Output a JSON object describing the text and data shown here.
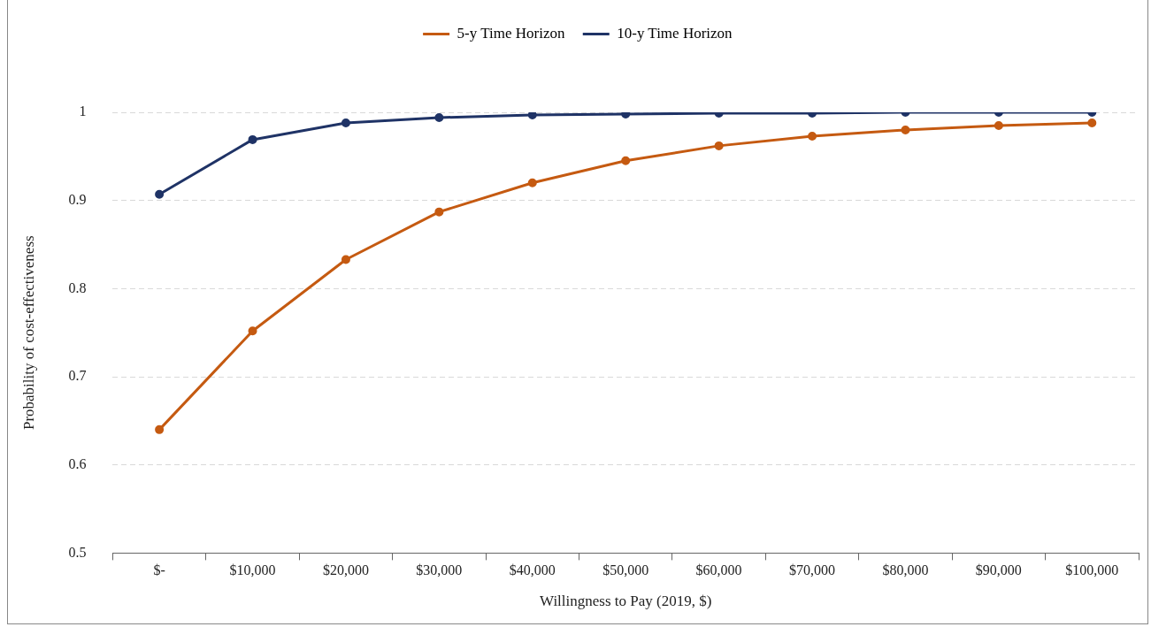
{
  "chart_data": {
    "type": "line",
    "xlabel": "Willingness to Pay (2019, $)",
    "ylabel": "Probability of cost-effectiveness",
    "categories": [
      "$-",
      "$10,000",
      "$20,000",
      "$30,000",
      "$40,000",
      "$50,000",
      "$60,000",
      "$70,000",
      "$80,000",
      "$90,000",
      "$100,000"
    ],
    "series": [
      {
        "name": "5-y Time Horizon",
        "color": "#c55a11",
        "values": [
          0.64,
          0.752,
          0.833,
          0.887,
          0.92,
          0.945,
          0.962,
          0.973,
          0.98,
          0.985,
          0.988
        ]
      },
      {
        "name": "10-y Time Horizon",
        "color": "#1f3366",
        "values": [
          0.907,
          0.969,
          0.988,
          0.994,
          0.997,
          0.998,
          0.999,
          0.999,
          1.0,
          1.0,
          1.0
        ]
      }
    ],
    "ylim": [
      0.5,
      1
    ],
    "yticks": [
      0.5,
      0.6,
      0.7,
      0.8,
      0.9,
      1
    ],
    "grid": "y",
    "legend": "top",
    "marker": "circle",
    "line_style": "solid"
  }
}
